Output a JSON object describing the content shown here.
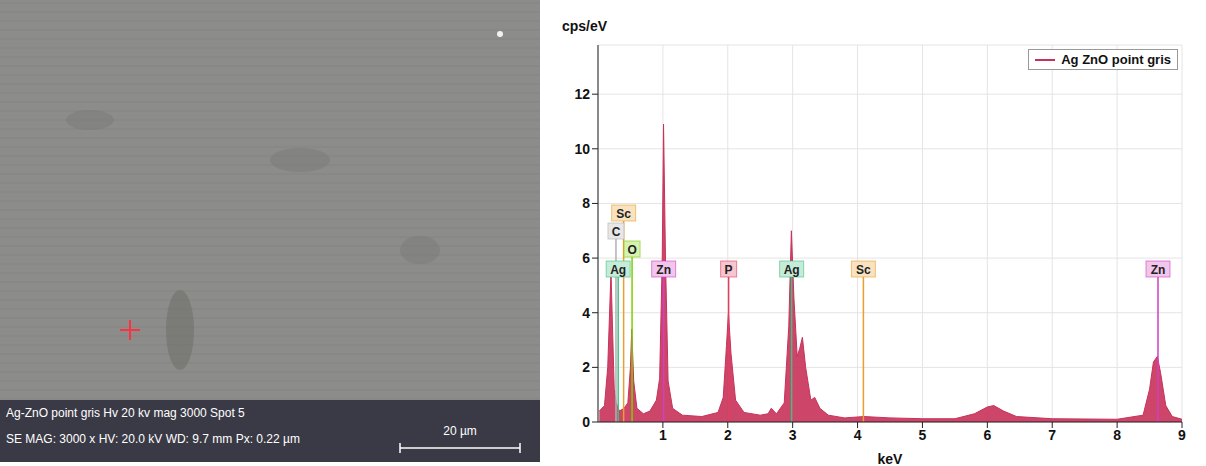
{
  "image": {
    "caption_lines": [
      "Ag-ZnO point gris Hv 20 kv mag 3000 Spot 5",
      "SE MAG: 3000 x HV: 20.0 kV WD: 9.7 mm Px: 0.22 µm"
    ],
    "scale_bar": "20 µm"
  },
  "chart_data": {
    "type": "area",
    "x_label": "keV",
    "y_label": "cps/eV",
    "x": [
      0.02,
      0.1,
      0.15,
      0.2,
      0.25,
      0.28,
      0.33,
      0.4,
      0.46,
      0.5,
      0.52,
      0.55,
      0.6,
      0.7,
      0.8,
      0.9,
      0.95,
      0.99,
      1.01,
      1.04,
      1.08,
      1.15,
      1.3,
      1.6,
      1.85,
      1.93,
      1.98,
      2.01,
      2.05,
      2.12,
      2.25,
      2.5,
      2.62,
      2.67,
      2.75,
      2.87,
      2.94,
      2.98,
      3.02,
      3.07,
      3.11,
      3.15,
      3.2,
      3.28,
      3.34,
      3.42,
      3.55,
      3.8,
      4.1,
      4.5,
      5.0,
      5.5,
      5.8,
      6.0,
      6.1,
      6.25,
      6.45,
      7.0,
      8.0,
      8.4,
      8.5,
      8.56,
      8.62,
      8.67,
      8.75,
      8.85,
      9.0
    ],
    "series": [
      {
        "name": "Ag ZnO point gris",
        "color": "#c8325a",
        "values": [
          0.4,
          0.6,
          2.0,
          5.5,
          1.2,
          0.7,
          0.4,
          0.5,
          0.7,
          2.0,
          3.4,
          1.5,
          0.5,
          0.3,
          0.4,
          0.8,
          1.6,
          6.0,
          10.9,
          6.0,
          1.5,
          0.5,
          0.25,
          0.2,
          0.35,
          0.9,
          2.8,
          4.0,
          2.5,
          0.8,
          0.35,
          0.25,
          0.3,
          0.5,
          0.3,
          0.7,
          3.5,
          7.0,
          4.5,
          2.4,
          2.7,
          3.1,
          2.0,
          0.8,
          0.9,
          0.5,
          0.25,
          0.15,
          0.2,
          0.15,
          0.12,
          0.12,
          0.3,
          0.55,
          0.6,
          0.4,
          0.2,
          0.12,
          0.1,
          0.25,
          1.2,
          2.2,
          2.4,
          1.8,
          0.6,
          0.2,
          0.1
        ]
      }
    ],
    "xlim": [
      0,
      9
    ],
    "xticks": [
      1,
      2,
      3,
      4,
      5,
      6,
      7,
      8,
      9
    ],
    "ylim": [
      0,
      13.8
    ],
    "yticks": [
      0,
      2,
      4,
      6,
      8,
      10,
      12
    ],
    "grid": true,
    "legend": "upper right",
    "annotations": [
      {
        "label": "Sc",
        "x": 0.395,
        "color": "#e8a030"
      },
      {
        "label": "C",
        "x": 0.277,
        "color": "#b0b0b0"
      },
      {
        "label": "O",
        "x": 0.525,
        "color": "#7ccf00"
      },
      {
        "label": "Ag",
        "x": 0.311,
        "color": "#40c080"
      },
      {
        "label": "Zn",
        "x": 1.012,
        "color": "#d040c0"
      },
      {
        "label": "P",
        "x": 2.013,
        "color": "#e04060"
      },
      {
        "label": "Ag",
        "x": 2.984,
        "color": "#40c080"
      },
      {
        "label": "Sc",
        "x": 4.09,
        "color": "#e8a030"
      },
      {
        "label": "Zn",
        "x": 8.63,
        "color": "#d040c0"
      }
    ]
  }
}
